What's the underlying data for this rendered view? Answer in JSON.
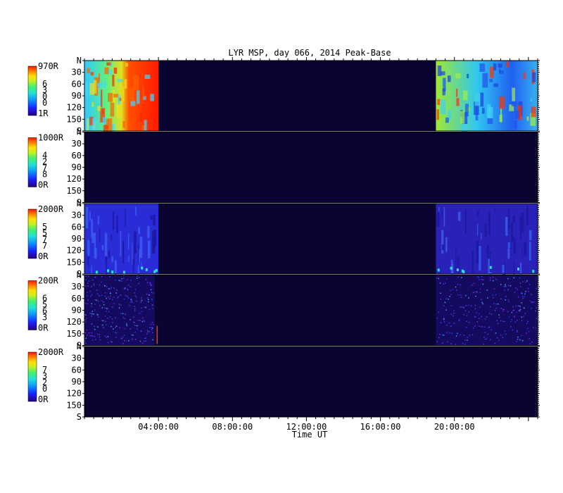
{
  "chart_data": {
    "type": "heatmap",
    "title": "LYR MSP, day 066, 2014 Peak-Base",
    "xlabel": "Time UT",
    "x_ticks": [
      "04:00:00",
      "08:00:00",
      "12:00:00",
      "16:00:00",
      "20:00:00"
    ],
    "x_tick_hours": [
      4,
      8,
      12,
      16,
      20
    ],
    "x_range_hours": [
      0,
      24.5
    ],
    "y_ticks": [
      "N",
      "30",
      "60",
      "90",
      "120",
      "150",
      "S"
    ],
    "y_tick_values": [
      0,
      30,
      60,
      90,
      120,
      150,
      180
    ],
    "ylim": [
      0,
      180
    ],
    "panels": [
      {
        "max_label": "970R",
        "min_label": "1R",
        "channel_digits": [
          "6",
          "3",
          "0",
          "0"
        ],
        "data_ranges_hours": [
          [
            0,
            4.0
          ],
          [
            19.0,
            24.5
          ]
        ],
        "style": "saturated"
      },
      {
        "max_label": "1000R",
        "min_label": "0R",
        "channel_digits": [
          "4",
          "2",
          "7",
          "8"
        ],
        "data_ranges_hours": [],
        "style": "empty"
      },
      {
        "max_label": "2000R",
        "min_label": "0R",
        "channel_digits": [
          "5",
          "5",
          "7",
          "7"
        ],
        "data_ranges_hours": [
          [
            0,
            4.0
          ],
          [
            19.0,
            24.5
          ]
        ],
        "style": "mid"
      },
      {
        "max_label": "200R",
        "min_label": "0R",
        "channel_digits": [
          "6",
          "5",
          "6",
          "3"
        ],
        "data_ranges_hours": [
          [
            0,
            3.8
          ],
          [
            19.0,
            24.5
          ]
        ],
        "style": "noise"
      },
      {
        "max_label": "2000R",
        "min_label": "0R",
        "channel_digits": [
          "7",
          "3",
          "2",
          "0"
        ],
        "data_ranges_hours": [],
        "style": "empty"
      }
    ],
    "colorscale": [
      "#2b0080",
      "#1a20ff",
      "#0a8cff",
      "#22e0d8",
      "#40f070",
      "#c8f020",
      "#ffe000",
      "#ff8000",
      "#ff1500"
    ],
    "background_color": "#0a0530"
  }
}
